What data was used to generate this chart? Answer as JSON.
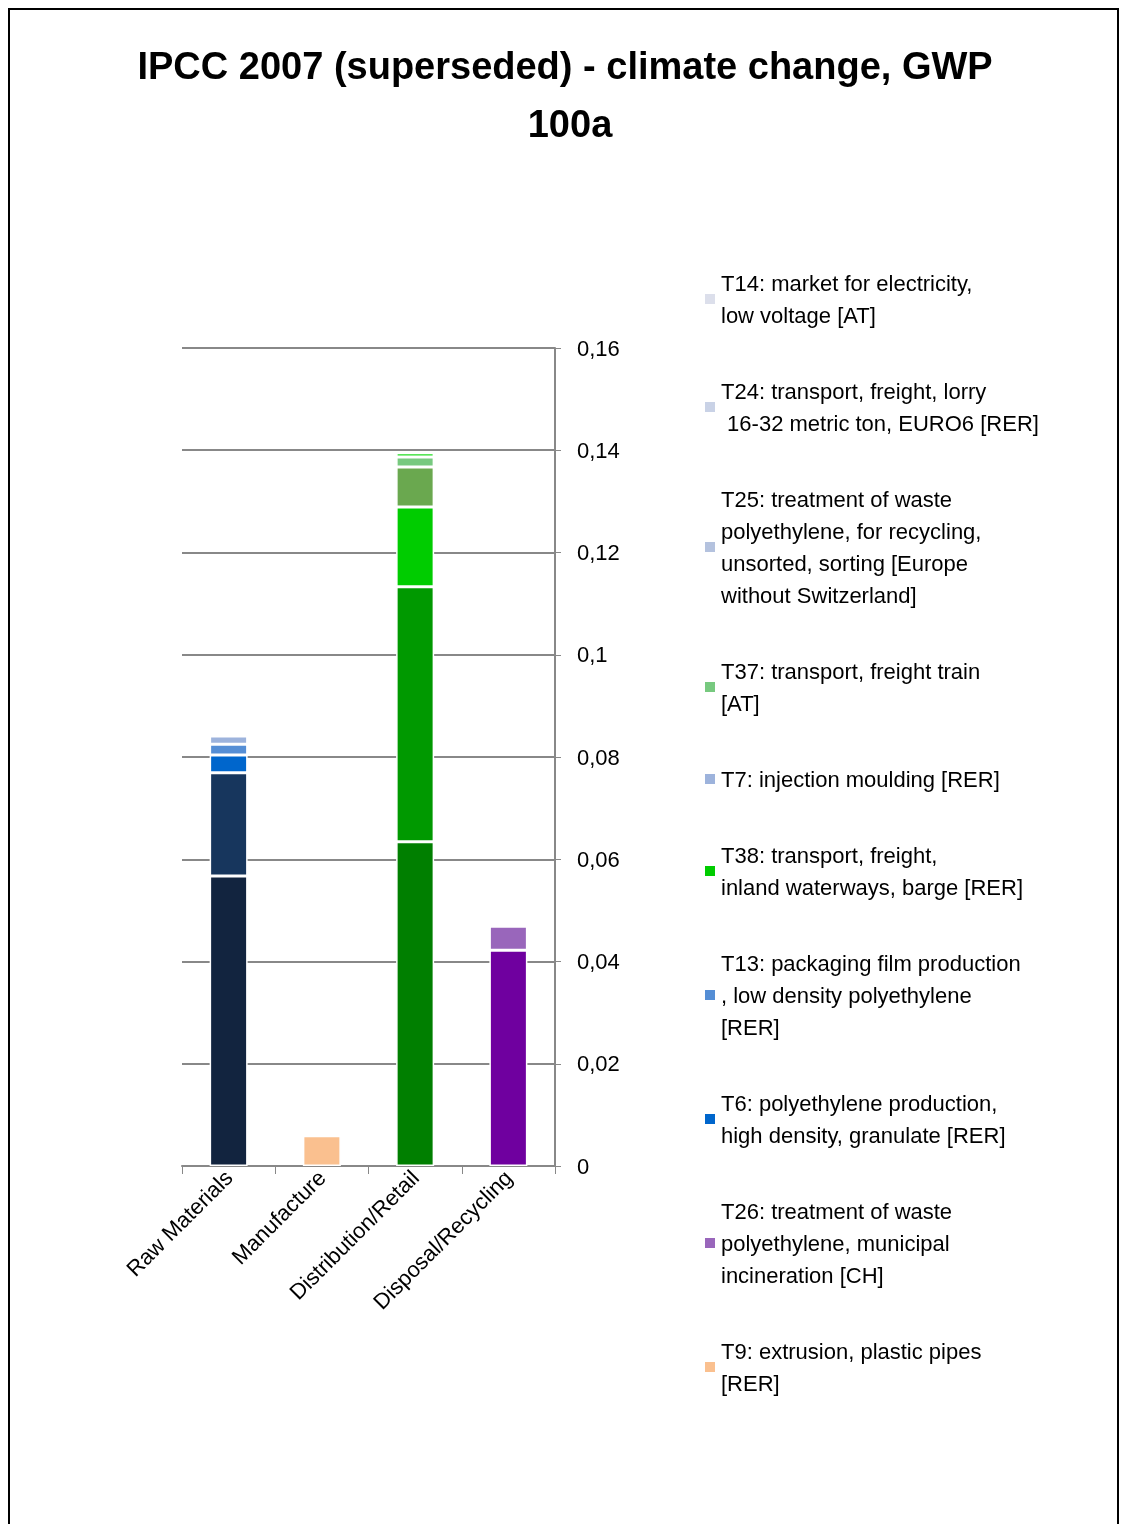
{
  "chart_data": {
    "type": "bar",
    "title": "IPCC 2007 (superseded) - climate change, GWP 100a",
    "stacked": true,
    "categories": [
      "Raw Materials",
      "Manufacture",
      "Distribution/Retail",
      "Disposal/Recycling"
    ],
    "series": [
      {
        "color": "#12243f",
        "values": [
          0.0567,
          null,
          null,
          null
        ]
      },
      {
        "color": "#17365d",
        "values": [
          0.0202,
          null,
          null,
          null
        ]
      },
      {
        "name": "T9: extrusion, plastic pipes [RER]",
        "color": "#fac08f",
        "values": [
          null,
          0.0059,
          null,
          null
        ]
      },
      {
        "color": "#007f00",
        "values": [
          null,
          null,
          0.0634,
          null
        ]
      },
      {
        "color": "#009900",
        "values": [
          null,
          null,
          0.0499,
          null
        ]
      },
      {
        "color": "#6f009f",
        "values": [
          null,
          null,
          null,
          0.0422
        ]
      },
      {
        "name": "T26: treatment of waste polyethylene, municipal incineration [CH]",
        "color": "#9966bb",
        "values": [
          null,
          null,
          null,
          0.0047
        ]
      },
      {
        "name": "T6: polyethylene production, high density, granulate [RER]",
        "color": "#0066cc",
        "values": [
          0.0035,
          null,
          null,
          null
        ]
      },
      {
        "name": "T13: packaging film production, low density polyethylene [RER]",
        "color": "#558ed5",
        "values": [
          0.0021,
          null,
          null,
          null
        ]
      },
      {
        "name": "T38: transport, freight, inland waterways, barge [RER]",
        "color": "#00cc00",
        "values": [
          null,
          null,
          0.0156,
          null
        ]
      },
      {
        "color": "#6aa84f",
        "values": [
          null,
          null,
          0.0078,
          null
        ]
      },
      {
        "name": "T7: injection moulding [RER]",
        "color": "#9db3dc",
        "values": [
          0.0016,
          null,
          null,
          null
        ]
      },
      {
        "name": "T37: transport, freight train [AT]",
        "color": "#77c97f",
        "values": [
          null,
          null,
          0.002,
          null
        ]
      },
      {
        "color": "#22dd22",
        "values": [
          null,
          null,
          0.0008,
          null
        ]
      },
      {
        "name": "T25: treatment of waste polyethylene, for recycling, unsorted, sorting [Europe without Switzerland]",
        "color": "#b4c2de",
        "values": [
          null,
          null,
          null,
          null
        ]
      },
      {
        "name": "T24: transport, freight, lorry 16-32 metric ton, EURO6 [RER]",
        "color": "#c9d2e6",
        "values": [
          null,
          null,
          null,
          null
        ]
      },
      {
        "name": "T14: market for electricity, low voltage [AT]",
        "color": "#dcdfeb",
        "values": [
          null,
          null,
          null,
          null
        ]
      }
    ],
    "ylim": [
      0,
      0.16
    ],
    "yticks": [
      {
        "value": 0,
        "label": "0"
      },
      {
        "value": 0.02,
        "label": "0,02"
      },
      {
        "value": 0.04,
        "label": "0,04"
      },
      {
        "value": 0.06,
        "label": "0,06"
      },
      {
        "value": 0.08,
        "label": "0,08"
      },
      {
        "value": 0.1,
        "label": "0,1"
      },
      {
        "value": 0.12,
        "label": "0,12"
      },
      {
        "value": 0.14,
        "label": "0,14"
      },
      {
        "value": 0.16,
        "label": "0,16"
      }
    ],
    "grid": "y",
    "legend": "right"
  }
}
